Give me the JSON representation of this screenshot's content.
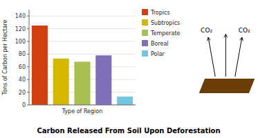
{
  "chart_data": {
    "type": "bar",
    "title": "Carbon Released From Soil Upon Deforestation",
    "xlabel": "Type of Region",
    "ylabel": "Tons of Carbon per Hectare",
    "categories": [
      "Tropics",
      "Subtropics",
      "Temperate",
      "Boreal",
      "Polar"
    ],
    "values": [
      125,
      73,
      68,
      78,
      13
    ],
    "colors": [
      "#d04010",
      "#d4b800",
      "#a8c050",
      "#8070b8",
      "#70c8e0"
    ],
    "ylim": [
      0,
      150
    ],
    "yticks": [
      0,
      20,
      40,
      60,
      80,
      100,
      120,
      140
    ],
    "grid": true,
    "legend": "right",
    "tick_labels": "y",
    "annotations": [
      "CO₂",
      "CO₂"
    ]
  }
}
